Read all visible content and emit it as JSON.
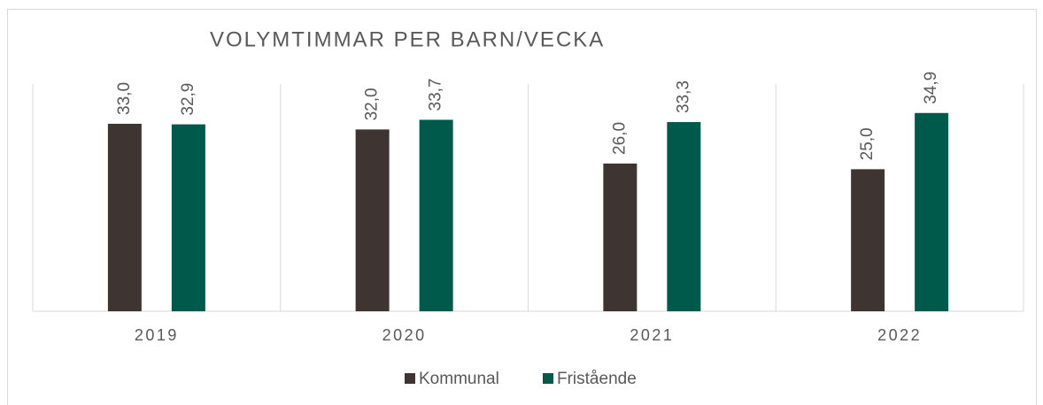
{
  "chart_data": {
    "type": "bar",
    "title": "VOLYMTIMMAR PER BARN/VECKA",
    "categories": [
      "2019",
      "2020",
      "2021",
      "2022"
    ],
    "series": [
      {
        "name": "Kommunal",
        "color": "#3e3532",
        "values": [
          33.0,
          32.0,
          26.0,
          25.0
        ],
        "value_labels": [
          "33,0",
          "32,0",
          "26,0",
          "25,0"
        ]
      },
      {
        "name": "Fristående",
        "color": "#005a4b",
        "values": [
          32.9,
          33.7,
          33.3,
          34.9
        ],
        "value_labels": [
          "32,9",
          "33,7",
          "33,3",
          "34,9"
        ]
      }
    ],
    "ylim": [
      0,
      40
    ],
    "legend": "bottom"
  }
}
